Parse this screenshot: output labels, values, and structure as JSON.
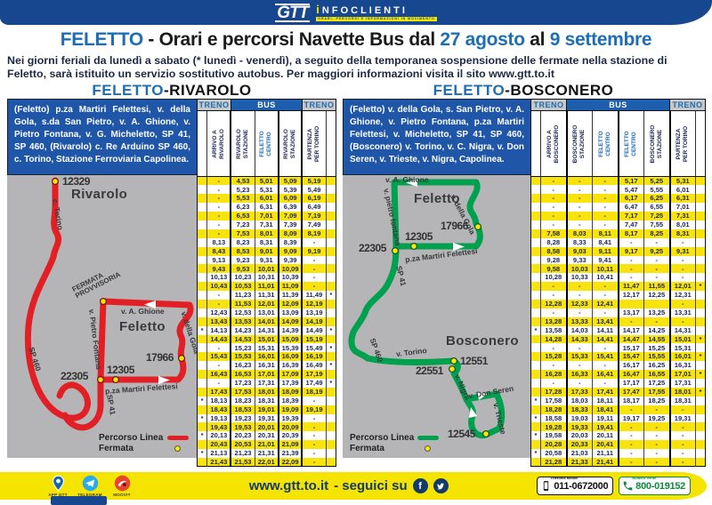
{
  "header": {
    "brand": "GTT",
    "info_i": "i",
    "info_rest": "NFOCLIENTI",
    "tagline": "ORARI, PERCORSI E INFORMAZIONI IN MOVIMENTO",
    "title": {
      "p1": "FELETTO",
      "p2": " - Orari e percorsi Navette Bus dal ",
      "p3": "27 agosto",
      "p4": " al ",
      "p5": "9 settembre"
    },
    "subtitle": "Nei giorni feriali da lunedì a sabato (* lunedì - venerdì), a seguito della temporanea sospensione delle fermate nella stazione di Feletto, sarà istituito un servizio sostitutivo autobus. Per maggiori informazioni visita il sito www.gtt.to.it"
  },
  "sections": [
    {
      "heading_blue": "FELETTO",
      "heading_black": "-RIVAROLO",
      "description": "(Feletto) p.za Martiri Felettesi, v. della Gola, s.da San Pietro, v. A. Ghione, v. Pietro Fontana, v. G. Micheletto, SP 41, SP 460, (Rivarolo) c. Re Arduino SP 460, c. Torino, Stazione Ferroviaria Capolinea.",
      "map": {
        "route_color": "#e31f26",
        "labels": {
          "stop_12329": "12329",
          "town": "Rivarolo",
          "c_torino": "c. Torino",
          "fermata_provvisoria": "FERMATA PROVVISORIA",
          "v_a_ghione": "v. A. Ghione",
          "feletto": "Feletto",
          "v_pietro_fontana": "v. Pietro Fontana",
          "v_della_gola": "v. della Gola",
          "stop_17966": "17966",
          "stop_12305": "12305",
          "stop_22305": "22305",
          "pza": "p.za Martiri Felettesi",
          "sp460": "SP 460",
          "sp41": "SP 41"
        },
        "legend": {
          "line": "Percorso Linea",
          "stop": "Fermata"
        }
      },
      "table": {
        "groups": [
          "TRENO",
          "BUS",
          "TRENO"
        ],
        "columns": [
          "ARRIVO A RIVAROLO",
          "RIVAROLO STAZIONE",
          "FELETTO CENTRO",
          "RIVAROLO STAZIONE",
          "PARTENZA PER TORINO"
        ],
        "rows": [
          [
            "",
            "-",
            "4,53",
            "5,01",
            "5,09",
            "5,19",
            ""
          ],
          [
            "",
            "-",
            "5,23",
            "5,31",
            "5,39",
            "5,49",
            ""
          ],
          [
            "",
            "-",
            "5,53",
            "6,01",
            "6,09",
            "6,19",
            ""
          ],
          [
            "",
            "-",
            "6,23",
            "6,31",
            "6,39",
            "6,49",
            ""
          ],
          [
            "",
            "-",
            "6,53",
            "7,01",
            "7,09",
            "7,19",
            ""
          ],
          [
            "",
            "-",
            "7,23",
            "7,31",
            "7,39",
            "7,49",
            ""
          ],
          [
            "",
            "-",
            "7,53",
            "8,01",
            "8,09",
            "8,19",
            ""
          ],
          [
            "",
            "8,13",
            "8,23",
            "8,31",
            "8,39",
            "-",
            ""
          ],
          [
            "",
            "8,43",
            "8,53",
            "9,01",
            "9,09",
            "9,19",
            ""
          ],
          [
            "",
            "9,13",
            "9,23",
            "9,31",
            "9,39",
            "-",
            ""
          ],
          [
            "",
            "9,43",
            "9,53",
            "10,01",
            "10,09",
            "-",
            ""
          ],
          [
            "",
            "10,13",
            "10,23",
            "10,31",
            "10,39",
            "-",
            ""
          ],
          [
            "",
            "10,43",
            "10,53",
            "11,01",
            "11,09",
            "-",
            ""
          ],
          [
            "",
            "-",
            "11,23",
            "11,31",
            "11,39",
            "11,49",
            "*"
          ],
          [
            "",
            "-",
            "11,53",
            "12,01",
            "12,09",
            "12,19",
            ""
          ],
          [
            "",
            "12,43",
            "12,53",
            "13,01",
            "13,09",
            "13,19",
            ""
          ],
          [
            "",
            "13,43",
            "13,53",
            "14,01",
            "14,09",
            "14,19",
            ""
          ],
          [
            "*",
            "14,13",
            "14,23",
            "14,31",
            "14,39",
            "14,49",
            "*"
          ],
          [
            "",
            "14,43",
            "14,53",
            "15,01",
            "15,09",
            "15,19",
            ""
          ],
          [
            "",
            "-",
            "15,23",
            "15,31",
            "15,39",
            "15,49",
            "*"
          ],
          [
            "",
            "15,43",
            "15,53",
            "16,01",
            "16,09",
            "16,19",
            ""
          ],
          [
            "",
            "-",
            "16,23",
            "16,31",
            "16,39",
            "16,49",
            "*"
          ],
          [
            "",
            "16,43",
            "16,53",
            "17,01",
            "17,09",
            "17,19",
            ""
          ],
          [
            "",
            "-",
            "17,23",
            "17,31",
            "17,39",
            "17,49",
            "*"
          ],
          [
            "",
            "17,43",
            "17,53",
            "18,01",
            "18,09",
            "18,19",
            ""
          ],
          [
            "*",
            "18,13",
            "18,23",
            "18,31",
            "18,39",
            "-",
            ""
          ],
          [
            "",
            "18,43",
            "18,53",
            "19,01",
            "19,09",
            "19,19",
            ""
          ],
          [
            "*",
            "19,13",
            "19,23",
            "19,31",
            "19,39",
            "-",
            ""
          ],
          [
            "",
            "19,43",
            "19,53",
            "20,01",
            "20,09",
            "-",
            ""
          ],
          [
            "*",
            "20,13",
            "20,23",
            "20,31",
            "20,39",
            "-",
            ""
          ],
          [
            "",
            "20,43",
            "20,53",
            "21,01",
            "21,09",
            "-",
            ""
          ],
          [
            "*",
            "21,13",
            "21,23",
            "21,31",
            "21,39",
            "-",
            ""
          ],
          [
            "",
            "21,43",
            "21,53",
            "22,01",
            "22,09",
            "-",
            ""
          ]
        ]
      }
    },
    {
      "heading_blue": "FELETTO",
      "heading_black": "-BOSCONERO",
      "description": "(Feletto) v. della Gola, s. San Pietro, v. A. Ghione, v. Pietro Fontana, p.za Martiri Felettesi, v. Micheletto, SP 41, SP 460, (Bosconero) v. Torino, v. C. Nigra, v. Don Seren, v. Trieste, v. Nigra, Capolinea.",
      "map": {
        "route_color": "#00a14e",
        "labels": {
          "v_a_ghione": "v. A. Ghione",
          "feletto": "Feletto",
          "v_pietro_fontana": "v. pietro fontana",
          "v_della_gola": "v. della Gola",
          "stop_17966": "17966",
          "stop_12305": "12305",
          "stop_22305": "22305",
          "pza": "p.za Martiri Felettesi",
          "sp41": "SP 41",
          "sp460": "SP 460",
          "v_torino": "v. Torino",
          "town": "Bosconero",
          "stop_12551": "12551",
          "stop_22551": "22551",
          "v_nigra": "v. Nigra",
          "v_don_seren": "v. Don Seren",
          "v_trieste": "v. Trieste",
          "stop_12545": "12545"
        },
        "legend": {
          "line": "Percorso Linea",
          "stop": "Fermata"
        }
      },
      "table": {
        "groups": [
          "TRENO",
          "BUS",
          "TRENO"
        ],
        "columns": [
          "ARRIVO A BOSCONERO",
          "BOSCONERO STAZIONE",
          "FELETTO CENTRO",
          "FELETTO CENTRO",
          "BOSCONERO STAZIONE",
          "PARTENZA PER TORINO"
        ],
        "rows": [
          [
            "",
            "-",
            "-",
            "-",
            "5,17",
            "5,25",
            "5,31",
            ""
          ],
          [
            "",
            "-",
            "-",
            "-",
            "5,47",
            "5,55",
            "6,01",
            ""
          ],
          [
            "",
            "-",
            "-",
            "-",
            "6,17",
            "6,25",
            "6,31",
            ""
          ],
          [
            "",
            "-",
            "-",
            "-",
            "6,47",
            "6,55",
            "7,01",
            ""
          ],
          [
            "",
            "-",
            "-",
            "-",
            "7,17",
            "7,25",
            "7,31",
            ""
          ],
          [
            "",
            "-",
            "-",
            "-",
            "7,47",
            "7,55",
            "8,01",
            ""
          ],
          [
            "",
            "7,58",
            "8,03",
            "8,11",
            "8,17",
            "8,25",
            "8,31",
            ""
          ],
          [
            "",
            "8,28",
            "8,33",
            "8,41",
            "-",
            "-",
            "-",
            ""
          ],
          [
            "",
            "8,58",
            "9,03",
            "9,11",
            "9,17",
            "9,25",
            "9,31",
            ""
          ],
          [
            "",
            "9,28",
            "9,33",
            "9,41",
            "-",
            "-",
            "-",
            ""
          ],
          [
            "",
            "9,58",
            "10,03",
            "10,11",
            "-",
            "-",
            "-",
            ""
          ],
          [
            "",
            "10,28",
            "10,33",
            "10,41",
            "-",
            "-",
            "-",
            ""
          ],
          [
            "",
            "-",
            "-",
            "-",
            "11,47",
            "11,55",
            "12,01",
            "*"
          ],
          [
            "",
            "-",
            "-",
            "-",
            "12,17",
            "12,25",
            "12,31",
            ""
          ],
          [
            "",
            "12,28",
            "12,33",
            "12,41",
            "",
            "",
            "-",
            ""
          ],
          [
            "",
            "-",
            "-",
            "-",
            "13,17",
            "13,25",
            "13,31",
            ""
          ],
          [
            "",
            "13,28",
            "13,33",
            "13,41",
            "-",
            "-",
            "-",
            ""
          ],
          [
            "*",
            "13,58",
            "14,03",
            "14,11",
            "14,17",
            "14,25",
            "14,31",
            ""
          ],
          [
            "",
            "14,28",
            "14,33",
            "14,41",
            "14,47",
            "14,55",
            "15,01",
            "*"
          ],
          [
            "",
            "-",
            "-",
            "-",
            "15,17",
            "15,25",
            "15,31",
            ""
          ],
          [
            "",
            "15,28",
            "15,33",
            "15,41",
            "15,47",
            "15,55",
            "16,01",
            "*"
          ],
          [
            "",
            "-",
            "-",
            "-",
            "16,17",
            "16,25",
            "16,31",
            ""
          ],
          [
            "",
            "16,28",
            "16,33",
            "16,41",
            "16,47",
            "16,55",
            "17,01",
            "*"
          ],
          [
            "",
            "-",
            "-",
            "-",
            "17,17",
            "17,25",
            "17,31",
            ""
          ],
          [
            "",
            "17,28",
            "17,33",
            "17,41",
            "17,47",
            "17,55",
            "18,01",
            "*"
          ],
          [
            "*",
            "17,58",
            "18,03",
            "18,11",
            "18,17",
            "18,25",
            "18,31",
            ""
          ],
          [
            "",
            "18,28",
            "18,33",
            "18,41",
            "-",
            "-",
            "-",
            ""
          ],
          [
            "*",
            "18,58",
            "19,03",
            "19,11",
            "19,17",
            "19,25",
            "19,31",
            ""
          ],
          [
            "",
            "19,28",
            "19,33",
            "19,41",
            "-",
            "-",
            "-",
            ""
          ],
          [
            "*",
            "19,58",
            "20,03",
            "20,11",
            "-",
            "-",
            "-",
            ""
          ],
          [
            "",
            "20,28",
            "20,33",
            "20,41",
            "-",
            "-",
            "-",
            ""
          ],
          [
            "*",
            "20,58",
            "21,03",
            "21,11",
            "-",
            "-",
            "-",
            ""
          ],
          [
            "",
            "21,28",
            "21,33",
            "21,41",
            "-",
            "-",
            "-",
            ""
          ]
        ]
      }
    }
  ],
  "footer": {
    "apps": [
      "APP GTT",
      "TELEGRAM",
      "MOOVIT"
    ],
    "website": "www.gtt.to.it",
    "seguici": "- seguici su",
    "mobile_label": "Telefonia Mobile",
    "mobile_number": "011-0672000",
    "verde_label": "Numero Verde",
    "verde_number": "800-019152"
  }
}
